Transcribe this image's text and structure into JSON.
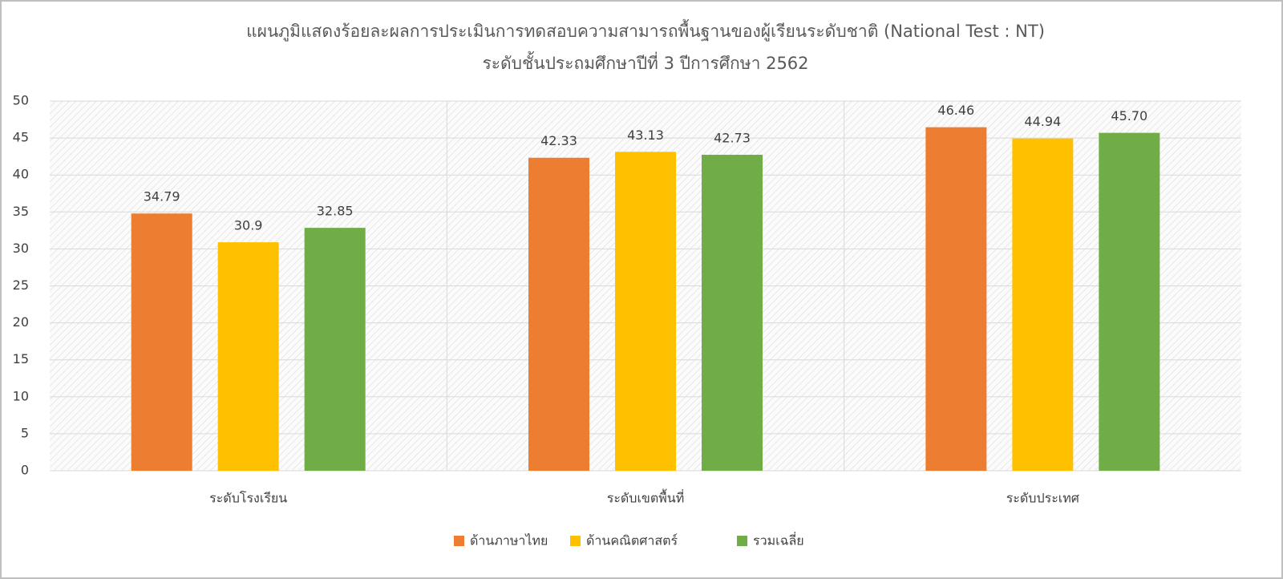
{
  "chart_data": {
    "type": "bar",
    "title": "แผนภูมิแสดงร้อยละผลการประเมินการทดสอบความสามารถพื้นฐานของผู้เรียนระดับชาติ (National Test : NT)",
    "subtitle": "ระดับชั้นประถมศึกษาปีที่ 3 ปีการศึกษา 2562",
    "categories": [
      "ระดับโรงเรียน",
      "ระดับเขตพื้นที่",
      "ระดับประเทศ"
    ],
    "series": [
      {
        "name": "ด้านภาษาไทย",
        "color": "#ed7d31",
        "values": [
          34.79,
          42.33,
          46.46
        ],
        "value_labels": [
          "34.79",
          "42.33",
          "46.46"
        ]
      },
      {
        "name": "ด้านคณิตศาสตร์",
        "color": "#ffc000",
        "values": [
          30.9,
          43.13,
          44.94
        ],
        "value_labels": [
          "30.9",
          "43.13",
          "44.94"
        ]
      },
      {
        "name": "รวมเฉลี่ย",
        "color": "#70ad47",
        "values": [
          32.85,
          42.73,
          45.7
        ],
        "value_labels": [
          "32.85",
          "42.73",
          "45.70"
        ]
      }
    ],
    "ylim": [
      0,
      50
    ],
    "yticks": [
      0,
      5,
      10,
      15,
      20,
      25,
      30,
      35,
      40,
      45,
      50
    ],
    "grid": true,
    "legend": "bottom"
  }
}
